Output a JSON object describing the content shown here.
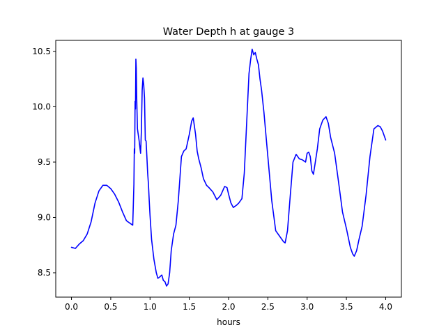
{
  "chart_data": {
    "type": "line",
    "title": "Water Depth h at gauge 3",
    "xlabel": "hours",
    "ylabel": "",
    "xlim": [
      -0.2,
      4.2
    ],
    "ylim": [
      8.28,
      10.6
    ],
    "xticks": [
      0.0,
      0.5,
      1.0,
      1.5,
      2.0,
      2.5,
      3.0,
      3.5,
      4.0
    ],
    "xtick_labels": [
      "0.0",
      "0.5",
      "1.0",
      "1.5",
      "2.0",
      "2.5",
      "3.0",
      "3.5",
      "4.0"
    ],
    "yticks": [
      8.5,
      9.0,
      9.5,
      10.0,
      10.5
    ],
    "ytick_labels": [
      "8.5",
      "9.0",
      "9.5",
      "10.0",
      "10.5"
    ],
    "grid": false,
    "series": [
      {
        "color": "#0000ff",
        "x": [
          0.0,
          0.05,
          0.1,
          0.15,
          0.2,
          0.25,
          0.3,
          0.35,
          0.4,
          0.45,
          0.5,
          0.55,
          0.6,
          0.65,
          0.7,
          0.74,
          0.78,
          0.795,
          0.8,
          0.805,
          0.81,
          0.815,
          0.82,
          0.825,
          0.83,
          0.84,
          0.86,
          0.88,
          0.89,
          0.9,
          0.91,
          0.92,
          0.93,
          0.94,
          0.95,
          0.96,
          0.97,
          0.98,
          0.99,
          1.0,
          1.02,
          1.05,
          1.08,
          1.1,
          1.12,
          1.15,
          1.17,
          1.19,
          1.21,
          1.23,
          1.25,
          1.27,
          1.3,
          1.33,
          1.36,
          1.4,
          1.43,
          1.46,
          1.5,
          1.53,
          1.55,
          1.58,
          1.6,
          1.62,
          1.65,
          1.68,
          1.72,
          1.75,
          1.8,
          1.85,
          1.9,
          1.95,
          1.98,
          2.0,
          2.03,
          2.06,
          2.1,
          2.13,
          2.17,
          2.2,
          2.23,
          2.26,
          2.28,
          2.3,
          2.32,
          2.34,
          2.36,
          2.38,
          2.4,
          2.42,
          2.45,
          2.5,
          2.55,
          2.6,
          2.65,
          2.7,
          2.72,
          2.75,
          2.78,
          2.82,
          2.86,
          2.9,
          2.94,
          2.98,
          3.0,
          3.02,
          3.04,
          3.06,
          3.08,
          3.1,
          3.13,
          3.16,
          3.2,
          3.24,
          3.27,
          3.3,
          3.35,
          3.4,
          3.45,
          3.5,
          3.55,
          3.58,
          3.6,
          3.63,
          3.66,
          3.7,
          3.75,
          3.8,
          3.85,
          3.9,
          3.93,
          3.96,
          4.0
        ],
        "y": [
          8.73,
          8.72,
          8.76,
          8.79,
          8.85,
          8.96,
          9.13,
          9.24,
          9.29,
          9.29,
          9.26,
          9.21,
          9.14,
          9.05,
          8.97,
          8.95,
          8.93,
          9.3,
          9.62,
          9.58,
          10.05,
          9.98,
          10.43,
          10.35,
          10.1,
          9.8,
          9.7,
          9.58,
          9.78,
          10.15,
          10.26,
          10.2,
          10.08,
          9.7,
          9.69,
          9.55,
          9.4,
          9.3,
          9.15,
          9.02,
          8.8,
          8.62,
          8.5,
          8.45,
          8.46,
          8.48,
          8.43,
          8.42,
          8.38,
          8.4,
          8.5,
          8.7,
          8.85,
          8.93,
          9.15,
          9.55,
          9.6,
          9.62,
          9.75,
          9.87,
          9.9,
          9.75,
          9.6,
          9.53,
          9.45,
          9.35,
          9.29,
          9.27,
          9.23,
          9.16,
          9.2,
          9.28,
          9.27,
          9.21,
          9.13,
          9.09,
          9.11,
          9.13,
          9.17,
          9.4,
          9.85,
          10.3,
          10.42,
          10.52,
          10.47,
          10.49,
          10.43,
          10.38,
          10.25,
          10.15,
          9.95,
          9.55,
          9.15,
          8.88,
          8.83,
          8.78,
          8.77,
          8.88,
          9.15,
          9.5,
          9.57,
          9.53,
          9.52,
          9.5,
          9.58,
          9.59,
          9.55,
          9.42,
          9.39,
          9.48,
          9.62,
          9.8,
          9.88,
          9.91,
          9.85,
          9.72,
          9.58,
          9.32,
          9.05,
          8.9,
          8.73,
          8.67,
          8.65,
          8.7,
          8.8,
          8.92,
          9.2,
          9.55,
          9.8,
          9.83,
          9.82,
          9.78,
          9.7
        ]
      }
    ]
  }
}
